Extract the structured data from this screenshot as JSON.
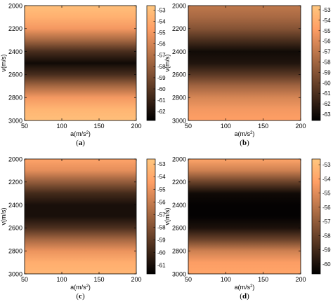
{
  "chart_data": [
    {
      "type": "heatmap",
      "caption": "(a)",
      "xlabel": "a(m/s²)",
      "ylabel": "v(m/s)",
      "xlim": [
        50,
        200
      ],
      "ylim": [
        2000,
        3000
      ],
      "x_ticks": [
        "50",
        "100",
        "150",
        "200"
      ],
      "y_ticks": [
        "2000",
        "2200",
        "2400",
        "2600",
        "2800",
        "3000"
      ],
      "colorbar_ticks": [
        "-53",
        "-54",
        "-55",
        "-56",
        "-57",
        "-58",
        "-59",
        "-60",
        "-61",
        "-62"
      ],
      "colorbar_range": [
        -62.8,
        -52.6
      ],
      "colormap": "copper",
      "profile_v": [
        2000,
        2100,
        2200,
        2300,
        2400,
        2500,
        2600,
        2700,
        2800,
        2900,
        3000
      ],
      "profile_db": [
        -53.0,
        -53.8,
        -55.0,
        -57.5,
        -60.5,
        -62.3,
        -60.5,
        -57.5,
        -55.0,
        -53.6,
        -53.0
      ]
    },
    {
      "type": "heatmap",
      "caption": "(b)",
      "xlabel": "a(m/s²)",
      "ylabel": "v(m/s)",
      "xlim": [
        50,
        200
      ],
      "ylim": [
        2000,
        3000
      ],
      "x_ticks": [
        "50",
        "100",
        "150",
        "200"
      ],
      "y_ticks": [
        "2000",
        "2200",
        "2400",
        "2600",
        "2800",
        "3000"
      ],
      "colorbar_ticks": [
        "-53",
        "-54",
        "-55",
        "-56",
        "-57",
        "-58",
        "-59",
        "-60",
        "-61",
        "-62",
        "-63"
      ],
      "colorbar_range": [
        -63.6,
        -52.6
      ],
      "colormap": "copper",
      "profile_v": [
        2000,
        2100,
        2200,
        2300,
        2400,
        2500,
        2600,
        2700,
        2800,
        2900,
        3000
      ],
      "profile_db": [
        -57.0,
        -57.8,
        -59.0,
        -61.0,
        -63.0,
        -62.5,
        -60.5,
        -58.0,
        -56.2,
        -55.2,
        -54.8
      ]
    },
    {
      "type": "heatmap",
      "caption": "(c)",
      "xlabel": "a(m/s²)",
      "ylabel": "v(m/s)",
      "xlim": [
        50,
        200
      ],
      "ylim": [
        2000,
        3000
      ],
      "x_ticks": [
        "50",
        "100",
        "150",
        "200"
      ],
      "y_ticks": [
        "2000",
        "2200",
        "2400",
        "2600",
        "2800",
        "3000"
      ],
      "colorbar_ticks": [
        "-53",
        "-54",
        "-55",
        "-56",
        "-57",
        "-58",
        "-59",
        "-60",
        "-61"
      ],
      "colorbar_range": [
        -61.7,
        -52.6
      ],
      "colormap": "copper",
      "profile_v": [
        2000,
        2100,
        2200,
        2300,
        2400,
        2500,
        2600,
        2700,
        2800,
        2900,
        3000
      ],
      "profile_db": [
        -54.2,
        -55.2,
        -57.5,
        -59.8,
        -61.0,
        -61.0,
        -59.5,
        -57.0,
        -55.0,
        -53.8,
        -53.4
      ]
    },
    {
      "type": "heatmap",
      "caption": "(d)",
      "xlabel": "a(m/s²)",
      "ylabel": "v(m/s)",
      "xlim": [
        50,
        200
      ],
      "ylim": [
        2000,
        3000
      ],
      "x_ticks": [
        "50",
        "100",
        "150",
        "200"
      ],
      "y_ticks": [
        "2000",
        "2200",
        "2400",
        "2600",
        "2800",
        "3000"
      ],
      "colorbar_ticks": [
        "-53",
        "-54",
        "-55",
        "-56",
        "-57",
        "-58",
        "-59",
        "-60"
      ],
      "colorbar_range": [
        -60.7,
        -52.6
      ],
      "colormap": "copper",
      "profile_v": [
        2000,
        2100,
        2200,
        2300,
        2400,
        2500,
        2600,
        2700,
        2800,
        2900,
        3000
      ],
      "profile_db": [
        -54.0,
        -55.5,
        -58.0,
        -60.3,
        -60.6,
        -60.6,
        -60.0,
        -58.0,
        -55.5,
        -54.3,
        -54.0
      ]
    }
  ]
}
